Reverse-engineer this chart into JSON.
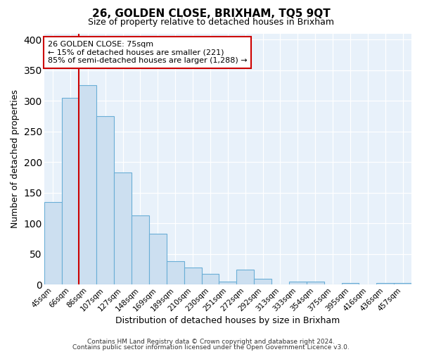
{
  "title": "26, GOLDEN CLOSE, BRIXHAM, TQ5 9QT",
  "subtitle": "Size of property relative to detached houses in Brixham",
  "xlabel": "Distribution of detached houses by size in Brixham",
  "ylabel": "Number of detached properties",
  "categories": [
    "45sqm",
    "66sqm",
    "86sqm",
    "107sqm",
    "127sqm",
    "148sqm",
    "169sqm",
    "189sqm",
    "210sqm",
    "230sqm",
    "251sqm",
    "272sqm",
    "292sqm",
    "313sqm",
    "333sqm",
    "354sqm",
    "375sqm",
    "395sqm",
    "416sqm",
    "436sqm",
    "457sqm"
  ],
  "values": [
    135,
    305,
    325,
    275,
    183,
    113,
    83,
    38,
    28,
    18,
    5,
    25,
    10,
    0,
    5,
    5,
    0,
    3,
    0,
    3,
    3
  ],
  "bar_color": "#ccdff0",
  "bar_edge_color": "#6aaed6",
  "vline_x": 1.5,
  "vline_color": "#cc0000",
  "annotation_line1": "26 GOLDEN CLOSE: 75sqm",
  "annotation_line2": "← 15% of detached houses are smaller (221)",
  "annotation_line3": "85% of semi-detached houses are larger (1,288) →",
  "annotation_box_edge": "#cc0000",
  "ylim": [
    0,
    410
  ],
  "yticks": [
    0,
    50,
    100,
    150,
    200,
    250,
    300,
    350,
    400
  ],
  "background_color": "#e8f1fa",
  "grid_color": "#ffffff",
  "footer_line1": "Contains HM Land Registry data © Crown copyright and database right 2024.",
  "footer_line2": "Contains public sector information licensed under the Open Government Licence v3.0."
}
